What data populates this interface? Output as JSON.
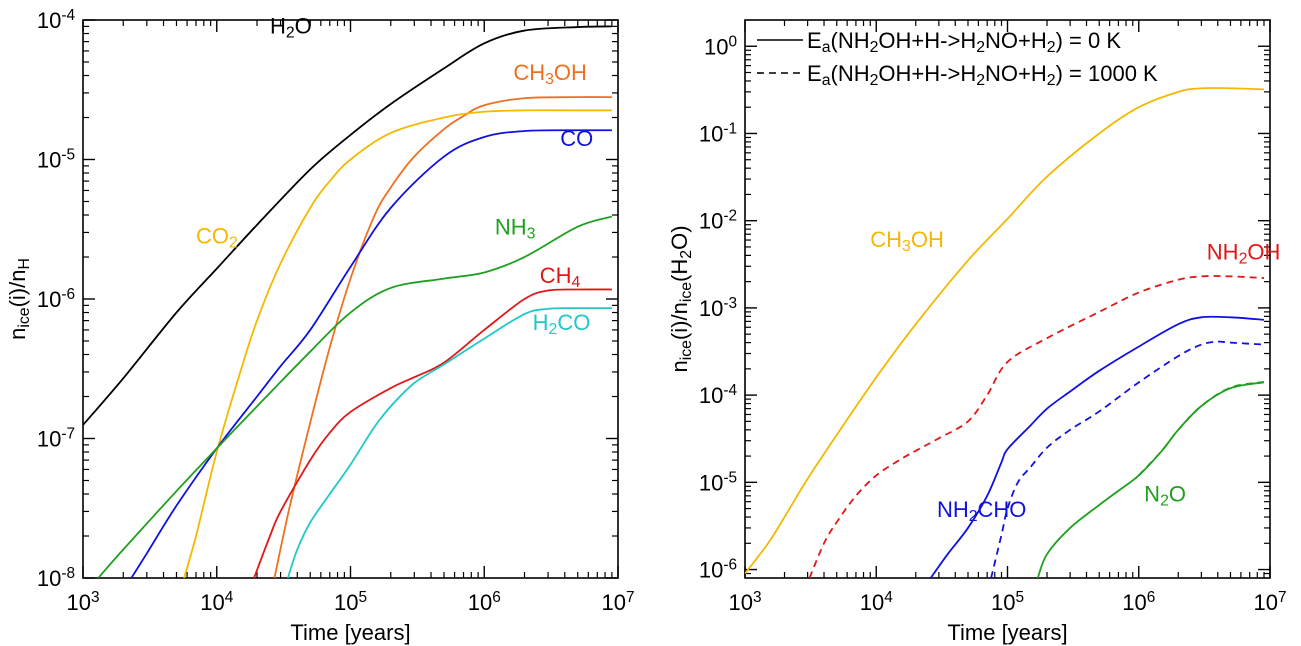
{
  "chart_data": [
    {
      "type": "line",
      "xlabel": "Time [years]",
      "ylabel": "n_ice(i)/n_H",
      "x_scale": "log",
      "y_scale": "log",
      "xlim": [
        1000,
        10000000
      ],
      "ylim": [
        1e-08,
        0.0001
      ],
      "x_ticks": [
        {
          "value": 1000,
          "base": "10",
          "exp": "3"
        },
        {
          "value": 10000,
          "base": "10",
          "exp": "4"
        },
        {
          "value": 100000,
          "base": "10",
          "exp": "5"
        },
        {
          "value": 1000000,
          "base": "10",
          "exp": "6"
        },
        {
          "value": 10000000,
          "base": "10",
          "exp": "7"
        }
      ],
      "y_ticks": [
        {
          "value": 1e-08,
          "base": "10",
          "exp": "-8"
        },
        {
          "value": 1e-07,
          "base": "10",
          "exp": "-7"
        },
        {
          "value": 1e-06,
          "base": "10",
          "exp": "-6"
        },
        {
          "value": 1e-05,
          "base": "10",
          "exp": "-5"
        },
        {
          "value": 0.0001,
          "base": "10",
          "exp": "-4"
        }
      ],
      "series": [
        {
          "name": "H2O",
          "label_parts": [
            [
              "H",
              ""
            ],
            [
              "2",
              "sub"
            ],
            [
              "O",
              ""
            ]
          ],
          "color": "#000000",
          "dash": "solid",
          "label_x": 25000.0,
          "label_y": 8e-05,
          "x": [
            1000,
            2000,
            5000,
            10000,
            20000,
            50000,
            100000,
            200000,
            500000,
            1000000,
            2000000,
            5000000,
            9000000
          ],
          "y": [
            1.25e-07,
            2.7e-07,
            8e-07,
            1.65e-06,
            3.4e-06,
            8.5e-06,
            1.5e-05,
            2.5e-05,
            4.5e-05,
            6.8e-05,
            8.4e-05,
            8.9e-05,
            9e-05
          ]
        },
        {
          "name": "CH3OH",
          "label_parts": [
            [
              "CH",
              ""
            ],
            [
              "3",
              "sub"
            ],
            [
              "OH",
              ""
            ]
          ],
          "color": "#f07020",
          "dash": "solid",
          "label_x": 1650000.0,
          "label_y": 3.7e-05,
          "x": [
            27000,
            35000,
            50000,
            70000,
            100000,
            150000,
            200000,
            300000,
            500000,
            700000,
            1000000,
            2000000,
            5000000,
            9000000
          ],
          "y": [
            1e-08,
            3.2e-08,
            1.3e-07,
            4.5e-07,
            1.4e-06,
            3.9e-06,
            6.3e-06,
            1.05e-05,
            1.65e-05,
            2.05e-05,
            2.45e-05,
            2.75e-05,
            2.8e-05,
            2.8e-05
          ]
        },
        {
          "name": "CO2",
          "label_parts": [
            [
              "CO",
              ""
            ],
            [
              "2",
              "sub"
            ]
          ],
          "color": "#f5b800",
          "dash": "solid",
          "label_x": 7000.0,
          "label_y": 2.5e-06,
          "x": [
            5700,
            7000,
            10000,
            15000,
            20000,
            30000,
            50000,
            70000,
            100000,
            200000,
            500000,
            1000000,
            2000000,
            5000000,
            9000000
          ],
          "y": [
            1e-08,
            2e-08,
            8e-08,
            3e-07,
            7e-07,
            1.8e-06,
            4.5e-06,
            7e-06,
            1e-05,
            1.55e-05,
            2e-05,
            2.2e-05,
            2.25e-05,
            2.25e-05,
            2.25e-05
          ]
        },
        {
          "name": "CO",
          "label_parts": [
            [
              "CO",
              ""
            ]
          ],
          "color": "#1010e0",
          "dash": "solid",
          "label_x": 3700000.0,
          "label_y": 1.25e-05,
          "x": [
            2300,
            3000,
            5000,
            10000,
            20000,
            30000,
            50000,
            100000,
            200000,
            500000,
            1000000,
            2000000,
            5000000,
            9000000
          ],
          "y": [
            1e-08,
            1.5e-08,
            3.3e-08,
            8.5e-08,
            2e-07,
            3.3e-07,
            6e-07,
            1.7e-06,
            4.5e-06,
            1.05e-05,
            1.45e-05,
            1.6e-05,
            1.62e-05,
            1.62e-05
          ]
        },
        {
          "name": "NH3",
          "label_parts": [
            [
              "NH",
              ""
            ],
            [
              "3",
              "sub"
            ]
          ],
          "color": "#20a020",
          "dash": "solid",
          "label_x": 1200000.0,
          "label_y": 2.9e-06,
          "x": [
            1300,
            2000,
            5000,
            10000,
            20000,
            50000,
            100000,
            200000,
            500000,
            1000000,
            2000000,
            5000000,
            9000000
          ],
          "y": [
            1e-08,
            1.6e-08,
            4.2e-08,
            8.5e-08,
            1.7e-07,
            4.2e-07,
            8e-07,
            1.2e-06,
            1.4e-06,
            1.55e-06,
            2e-06,
            3.3e-06,
            3.9e-06
          ]
        },
        {
          "name": "CH4",
          "label_parts": [
            [
              "CH",
              ""
            ],
            [
              "4",
              "sub"
            ]
          ],
          "color": "#e01818",
          "dash": "solid",
          "label_x": 2600000.0,
          "label_y": 1.3e-06,
          "x": [
            19000,
            25000,
            30000,
            50000,
            70000,
            100000,
            200000,
            300000,
            500000,
            1000000,
            2000000,
            3000000,
            5000000,
            9000000
          ],
          "y": [
            1e-08,
            2e-08,
            3e-08,
            7e-08,
            1.1e-07,
            1.55e-07,
            2.3e-07,
            2.75e-07,
            3.5e-07,
            6e-07,
            1e-06,
            1.15e-06,
            1.17e-06,
            1.17e-06
          ]
        },
        {
          "name": "H2CO",
          "label_parts": [
            [
              "H",
              ""
            ],
            [
              "2",
              "sub"
            ],
            [
              "CO",
              ""
            ]
          ],
          "color": "#20c8c8",
          "dash": "solid",
          "label_x": 2300000.0,
          "label_y": 6e-07,
          "x": [
            34000,
            40000,
            50000,
            70000,
            100000,
            150000,
            200000,
            300000,
            500000,
            1000000,
            2000000,
            3000000,
            5000000,
            9000000
          ],
          "y": [
            1e-08,
            1.6e-08,
            2.5e-08,
            4e-08,
            6.5e-08,
            1.2e-07,
            1.7e-07,
            2.5e-07,
            3.4e-07,
            5.2e-07,
            7.8e-07,
            8.5e-07,
            8.6e-07,
            8.6e-07
          ]
        }
      ]
    },
    {
      "type": "line",
      "xlabel": "Time [years]",
      "ylabel": "n_ice(i)/n_ice(H2O)",
      "x_scale": "log",
      "y_scale": "log",
      "xlim": [
        1000,
        10000000
      ],
      "ylim": [
        8e-07,
        2
      ],
      "x_ticks": [
        {
          "value": 1000,
          "base": "10",
          "exp": "3"
        },
        {
          "value": 10000,
          "base": "10",
          "exp": "4"
        },
        {
          "value": 100000,
          "base": "10",
          "exp": "5"
        },
        {
          "value": 1000000,
          "base": "10",
          "exp": "6"
        },
        {
          "value": 10000000,
          "base": "10",
          "exp": "7"
        }
      ],
      "y_ticks": [
        {
          "value": 1e-06,
          "base": "10",
          "exp": "-6"
        },
        {
          "value": 1e-05,
          "base": "10",
          "exp": "-5"
        },
        {
          "value": 0.0001,
          "base": "10",
          "exp": "-4"
        },
        {
          "value": 0.001,
          "base": "10",
          "exp": "-3"
        },
        {
          "value": 0.01,
          "base": "10",
          "exp": "-2"
        },
        {
          "value": 0.1,
          "base": "10",
          "exp": "-1"
        },
        {
          "value": 1,
          "base": "10",
          "exp": "0"
        }
      ],
      "legend": {
        "placement": "top-right",
        "entries": [
          {
            "dash": "solid",
            "parts": [
              [
                "E",
                ""
              ],
              [
                "a",
                "sub"
              ],
              [
                "(NH",
                ""
              ],
              [
                "2",
                "sub"
              ],
              [
                "OH+H->H",
                ""
              ],
              [
                "2",
                "sub"
              ],
              [
                "NO+H",
                ""
              ],
              [
                "2",
                "sub"
              ],
              [
                ") = 0 K",
                ""
              ]
            ]
          },
          {
            "dash": "dashed",
            "parts": [
              [
                "E",
                ""
              ],
              [
                "a",
                "sub"
              ],
              [
                "(NH",
                ""
              ],
              [
                "2",
                "sub"
              ],
              [
                "OH+H->H",
                ""
              ],
              [
                "2",
                "sub"
              ],
              [
                "NO+H",
                ""
              ],
              [
                "2",
                "sub"
              ],
              [
                ") = 1000 K",
                ""
              ]
            ]
          }
        ]
      },
      "series": [
        {
          "name": "CH3OH",
          "label_parts": [
            [
              "CH",
              ""
            ],
            [
              "3",
              "sub"
            ],
            [
              "OH",
              ""
            ]
          ],
          "color": "#f5b800",
          "dash": "solid",
          "label_x": 9000.0,
          "label_y": 0.005,
          "x": [
            1000,
            1500,
            2000,
            3000,
            5000,
            10000,
            20000,
            50000,
            100000,
            200000,
            500000,
            1000000,
            2000000,
            3000000,
            5000000,
            9000000
          ],
          "y": [
            9e-07,
            2e-06,
            4e-06,
            1.1e-05,
            3.5e-05,
            0.00016,
            0.00065,
            0.0035,
            0.0105,
            0.032,
            0.1,
            0.2,
            0.3,
            0.33,
            0.33,
            0.32
          ]
        },
        {
          "name": "NH2OH",
          "label_parts": [
            [
              "NH",
              ""
            ],
            [
              "2",
              "sub"
            ],
            [
              "OH",
              ""
            ]
          ],
          "color": "#e01818",
          "dash": "dashed",
          "label_x": 3300000.0,
          "label_y": 0.0036,
          "x": [
            3100,
            4000,
            5000,
            7000,
            10000,
            15000,
            20000,
            30000,
            50000,
            70000,
            100000,
            200000,
            500000,
            1000000,
            2000000,
            3000000,
            5000000,
            9000000
          ],
          "y": [
            8e-07,
            2e-06,
            3.5e-06,
            7e-06,
            1.2e-05,
            1.8e-05,
            2.3e-05,
            3.2e-05,
            5e-05,
            0.0001,
            0.00024,
            0.00045,
            0.0009,
            0.0015,
            0.0021,
            0.0023,
            0.0023,
            0.0022
          ]
        },
        {
          "name": "NH2CHO",
          "label_parts": [
            [
              "NH",
              ""
            ],
            [
              "2",
              "sub"
            ],
            [
              "CHO",
              ""
            ]
          ],
          "color": "#1010e0",
          "dash": "solid",
          "label_x": 29000.0,
          "label_y": 4e-06,
          "x": [
            26000,
            35000,
            50000,
            70000,
            90000,
            100000,
            150000,
            200000,
            300000,
            500000,
            1000000,
            2000000,
            3000000,
            5000000,
            9000000
          ],
          "y": [
            8e-07,
            1.5e-06,
            3e-06,
            7e-06,
            1.7e-05,
            2.4e-05,
            4.5e-05,
            7e-05,
            0.00011,
            0.00019,
            0.00036,
            0.00065,
            0.00078,
            0.00078,
            0.00073
          ]
        },
        {
          "name": "NH2CHO (Ea=1000 K)",
          "color": "#1010e0",
          "dash": "dashed",
          "x": [
            75000,
            90000,
            100000,
            120000,
            150000,
            200000,
            300000,
            500000,
            1000000,
            2000000,
            3000000,
            4000000,
            5000000,
            9000000
          ],
          "y": [
            8e-07,
            2.5e-06,
            5e-06,
            1e-05,
            1.5e-05,
            2.5e-05,
            4e-05,
            6.5e-05,
            0.00014,
            0.00028,
            0.00038,
            0.00041,
            0.0004,
            0.00038
          ]
        },
        {
          "name": "N2O",
          "label_parts": [
            [
              "N",
              ""
            ],
            [
              "2",
              "sub"
            ],
            [
              "O",
              ""
            ]
          ],
          "color": "#20a020",
          "dash": "solid",
          "label_x": 1100000.0,
          "label_y": 6e-06,
          "x": [
            170000,
            200000,
            300000,
            500000,
            700000,
            1000000,
            1500000,
            2000000,
            3000000,
            5000000,
            9000000
          ],
          "y": [
            8e-07,
            1.5e-06,
            3e-06,
            5.5e-06,
            8e-06,
            1.2e-05,
            2.3e-05,
            4e-05,
            7.5e-05,
            0.00012,
            0.00014
          ]
        },
        {
          "name": "N2O (Ea=1000 K)",
          "color": "#20a020",
          "dash": "dashed",
          "x": [
            1000000,
            1500000,
            2000000,
            3000000,
            5000000,
            9000000
          ],
          "y": [
            1.2e-05,
            2.3e-05,
            4e-05,
            7.5e-05,
            0.000122,
            0.000142
          ]
        }
      ]
    }
  ]
}
